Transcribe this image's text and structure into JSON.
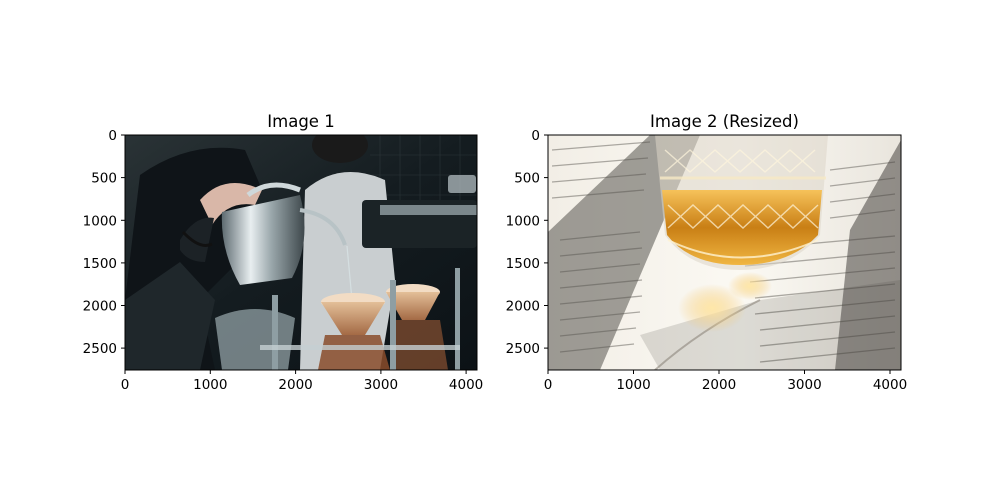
{
  "figure": {
    "background": "#ffffff",
    "panels": [
      {
        "title": "Image 1",
        "image_description": "Barista pouring water from a gooseneck kettle into pour-over coffee drippers",
        "xlim": [
          0,
          4128
        ],
        "ylim": [
          2752,
          0
        ],
        "xticks": [
          0,
          1000,
          2000,
          3000,
          4000
        ],
        "yticks": [
          0,
          500,
          1000,
          1500,
          2000,
          2500
        ]
      },
      {
        "title": "Image 2 (Resized)",
        "image_description": "Cut-crystal glass of whisky resting on an open book in sunlight",
        "xlim": [
          0,
          4128
        ],
        "ylim": [
          2752,
          0
        ],
        "xticks": [
          0,
          1000,
          2000,
          3000,
          4000
        ],
        "yticks": [
          0,
          500,
          1000,
          1500,
          2000,
          2500
        ]
      }
    ]
  }
}
